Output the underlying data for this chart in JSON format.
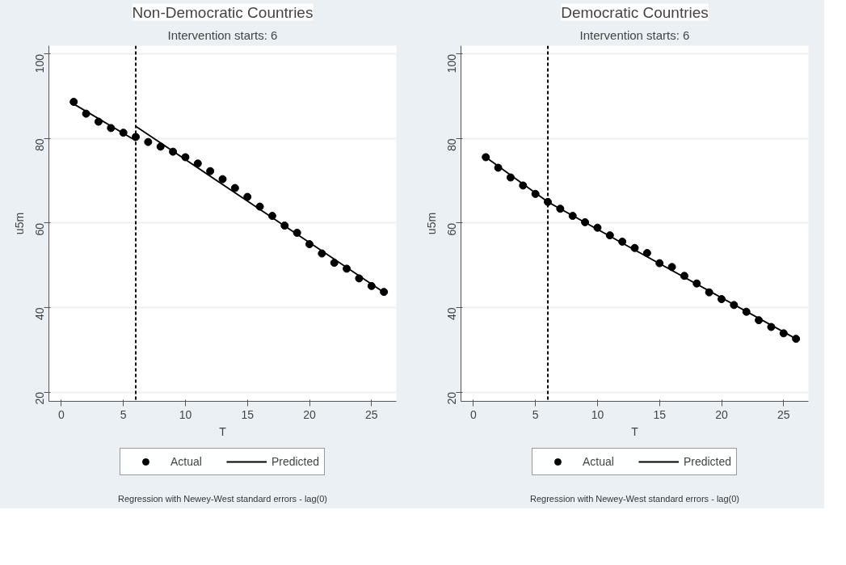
{
  "chart_data": [
    {
      "type": "scatter",
      "title": "Non-Democratic Countries",
      "xlabel": "T",
      "ylabel": "u5m",
      "x": [
        1,
        2,
        3,
        4,
        5,
        6,
        7,
        8,
        9,
        10,
        11,
        12,
        13,
        14,
        15,
        16,
        17,
        18,
        19,
        20,
        21,
        22,
        23,
        24,
        25,
        26
      ],
      "series": [
        {
          "name": "Actual",
          "color": "#000000",
          "marker": "circle",
          "values": [
            88.7,
            85.9,
            84.0,
            82.5,
            81.4,
            80.4,
            79.2,
            78.1,
            76.9,
            75.6,
            74.1,
            72.3,
            70.4,
            68.3,
            66.2,
            63.9,
            61.7,
            59.4,
            57.7,
            55.0,
            52.8,
            50.6,
            49.2,
            46.9,
            45.1,
            43.7
          ]
        },
        {
          "name": "Predicted",
          "type": "line",
          "color": "#000000",
          "line_style": "solid",
          "x": [
            1,
            6,
            null,
            6,
            26
          ],
          "values": [
            88.2,
            79.5,
            null,
            82.9,
            43.6
          ]
        }
      ],
      "xlim": [
        -1,
        27
      ],
      "ylim": [
        17.8,
        102
      ],
      "xticks": [
        0,
        5,
        10,
        15,
        20,
        25
      ],
      "yticks": [
        20,
        40,
        60,
        80,
        100
      ],
      "grid": "y",
      "legend": "bottom",
      "ref_lines": [
        {
          "axis": "x",
          "value": 6,
          "label": "Intervention starts: 6",
          "line_style": "dashed",
          "color": "#000000"
        }
      ],
      "annotations": [
        "Regression with Newey-West standard errors - lag(0)"
      ]
    },
    {
      "type": "scatter",
      "title": "Democratic Countries",
      "xlabel": "T",
      "ylabel": "u5m",
      "x": [
        1,
        2,
        3,
        4,
        5,
        6,
        7,
        8,
        9,
        10,
        11,
        12,
        13,
        14,
        15,
        16,
        17,
        18,
        19,
        20,
        21,
        22,
        23,
        24,
        25,
        26
      ],
      "series": [
        {
          "name": "Actual",
          "color": "#000000",
          "marker": "circle",
          "values": [
            75.6,
            73.1,
            70.8,
            68.9,
            66.9,
            65.0,
            63.4,
            61.7,
            60.2,
            58.9,
            57.1,
            55.6,
            54.1,
            52.9,
            50.5,
            49.6,
            47.5,
            45.7,
            43.6,
            42.0,
            40.6,
            39.0,
            37.0,
            35.4,
            33.9,
            32.6
          ]
        },
        {
          "name": "Predicted",
          "type": "line",
          "color": "#000000",
          "line_style": "solid",
          "x": [
            1,
            6,
            null,
            6,
            26
          ],
          "values": [
            75.6,
            65.0,
            null,
            65.0,
            32.6
          ]
        }
      ],
      "xlim": [
        -1,
        27
      ],
      "ylim": [
        17.8,
        102
      ],
      "xticks": [
        0,
        5,
        10,
        15,
        20,
        25
      ],
      "yticks": [
        20,
        40,
        60,
        80,
        100
      ],
      "grid": "y",
      "legend": "bottom",
      "ref_lines": [
        {
          "axis": "x",
          "value": 6,
          "label": "Intervention starts: 6",
          "line_style": "dashed",
          "color": "#000000"
        }
      ],
      "annotations": [
        "Regression with Newey-West standard errors - lag(0)"
      ]
    }
  ]
}
